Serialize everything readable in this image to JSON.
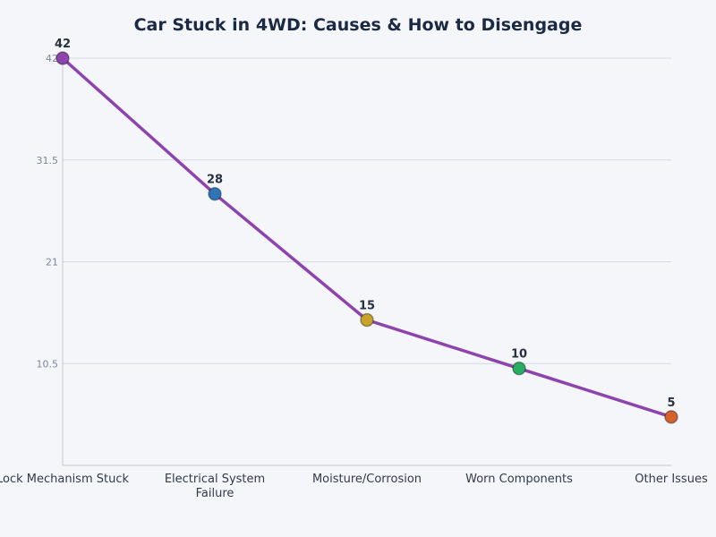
{
  "chart_data": {
    "type": "line",
    "title": "Car Stuck in 4WD: Causes & How to Disengage",
    "categories": [
      [
        "Lock Mechanism Stuck"
      ],
      [
        "Electrical System",
        "Failure"
      ],
      [
        "Moisture/Corrosion"
      ],
      [
        "Worn Components"
      ],
      [
        "Other Issues"
      ]
    ],
    "values": [
      42,
      28,
      15,
      10,
      5
    ],
    "data_labels": [
      "42",
      "28",
      "15",
      "10",
      "5"
    ],
    "point_colors": [
      "#8e44ad",
      "#2e75b6",
      "#c9a227",
      "#27ae60",
      "#d4622a"
    ],
    "line_color": "#8e44ad",
    "yticks": [
      "10.5",
      "21",
      "31.5",
      "42"
    ],
    "ylim": [
      0,
      42
    ],
    "grid": true,
    "xlabel": "",
    "ylabel": ""
  }
}
